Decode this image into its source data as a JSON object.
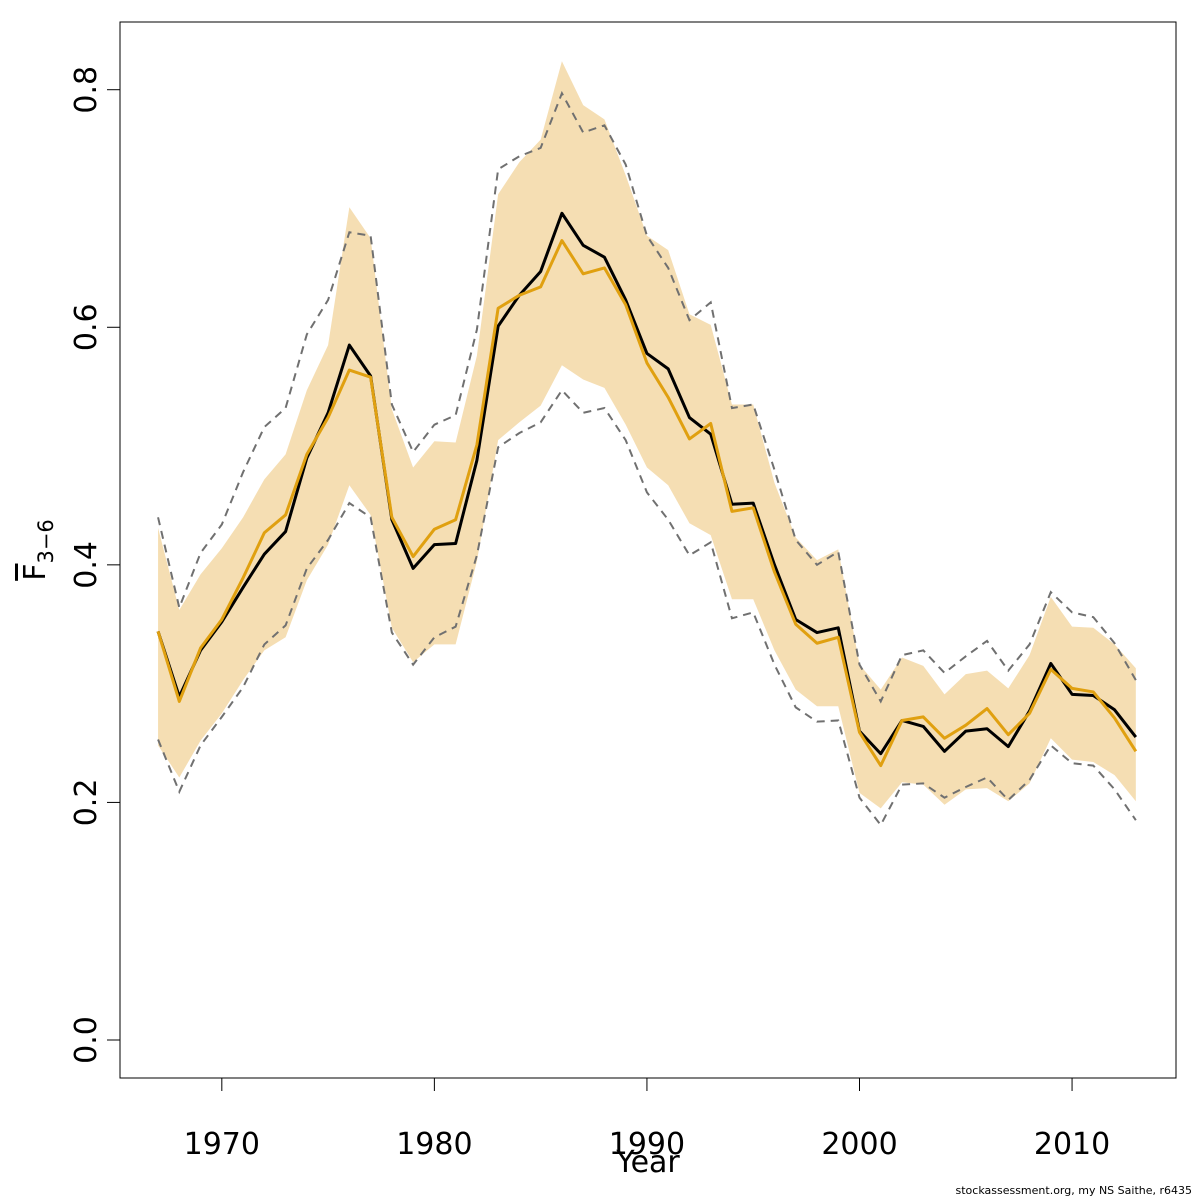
{
  "chart_data": {
    "type": "line",
    "xlabel": "Year",
    "ylabel": {
      "base": "F",
      "subscript": "3−6"
    },
    "footer": "stockassessment.org, my  NS Saithe, r6435",
    "x": [
      1967,
      1968,
      1969,
      1970,
      1971,
      1972,
      1973,
      1974,
      1975,
      1976,
      1977,
      1978,
      1979,
      1980,
      1981,
      1982,
      1983,
      1984,
      1985,
      1986,
      1987,
      1988,
      1989,
      1990,
      1991,
      1992,
      1993,
      1994,
      1995,
      1996,
      1997,
      1998,
      1999,
      2000,
      2001,
      2002,
      2003,
      2004,
      2005,
      2006,
      2007,
      2008,
      2009,
      2010,
      2011,
      2012,
      2013
    ],
    "xlim": [
      1965.21,
      2014.89
    ],
    "ylim": [
      -0.032,
      0.857
    ],
    "xticks": [
      1970,
      1980,
      1990,
      2000,
      2010
    ],
    "yticks": [
      {
        "value": 0,
        "label": "0.0"
      },
      0.2,
      0.4,
      0.6,
      0.8
    ],
    "band": {
      "color": "#f5deb3",
      "lower": [
        0.248,
        0.221,
        0.252,
        0.275,
        0.303,
        0.328,
        0.339,
        0.387,
        0.417,
        0.467,
        0.442,
        0.347,
        0.318,
        0.333,
        0.333,
        0.403,
        0.505,
        0.52,
        0.534,
        0.568,
        0.556,
        0.549,
        0.518,
        0.482,
        0.467,
        0.435,
        0.425,
        0.371,
        0.371,
        0.328,
        0.295,
        0.281,
        0.281,
        0.208,
        0.195,
        0.217,
        0.215,
        0.198,
        0.211,
        0.212,
        0.201,
        0.216,
        0.254,
        0.236,
        0.234,
        0.223,
        0.201
      ],
      "upper": [
        0.431,
        0.362,
        0.392,
        0.414,
        0.44,
        0.472,
        0.493,
        0.547,
        0.585,
        0.701,
        0.675,
        0.531,
        0.482,
        0.504,
        0.503,
        0.576,
        0.712,
        0.739,
        0.758,
        0.824,
        0.787,
        0.775,
        0.728,
        0.677,
        0.665,
        0.611,
        0.602,
        0.535,
        0.535,
        0.469,
        0.423,
        0.404,
        0.413,
        0.316,
        0.295,
        0.322,
        0.315,
        0.291,
        0.308,
        0.311,
        0.296,
        0.324,
        0.373,
        0.348,
        0.347,
        0.333,
        0.313
      ]
    },
    "bounds": {
      "color": "#707070",
      "dashed": true,
      "lower": [
        0.253,
        0.209,
        0.248,
        0.272,
        0.297,
        0.333,
        0.349,
        0.397,
        0.421,
        0.452,
        0.44,
        0.343,
        0.316,
        0.339,
        0.348,
        0.408,
        0.499,
        0.511,
        0.52,
        0.547,
        0.528,
        0.532,
        0.505,
        0.461,
        0.438,
        0.408,
        0.419,
        0.355,
        0.36,
        0.316,
        0.28,
        0.268,
        0.269,
        0.204,
        0.181,
        0.215,
        0.216,
        0.204,
        0.213,
        0.221,
        0.202,
        0.219,
        0.248,
        0.233,
        0.231,
        0.211,
        0.185
      ],
      "upper": [
        0.44,
        0.364,
        0.41,
        0.434,
        0.478,
        0.516,
        0.532,
        0.594,
        0.623,
        0.68,
        0.677,
        0.535,
        0.495,
        0.518,
        0.526,
        0.598,
        0.733,
        0.744,
        0.751,
        0.797,
        0.764,
        0.77,
        0.737,
        0.677,
        0.65,
        0.606,
        0.621,
        0.532,
        0.535,
        0.48,
        0.421,
        0.4,
        0.411,
        0.316,
        0.285,
        0.324,
        0.328,
        0.309,
        0.323,
        0.336,
        0.311,
        0.333,
        0.377,
        0.36,
        0.356,
        0.334,
        0.303
      ]
    },
    "series": [
      {
        "color": "#000000",
        "values": [
          0.344,
          0.289,
          0.328,
          0.352,
          0.381,
          0.409,
          0.428,
          0.49,
          0.528,
          0.585,
          0.559,
          0.438,
          0.397,
          0.417,
          0.418,
          0.488,
          0.601,
          0.627,
          0.647,
          0.696,
          0.669,
          0.659,
          0.623,
          0.578,
          0.565,
          0.524,
          0.51,
          0.451,
          0.452,
          0.4,
          0.354,
          0.343,
          0.347,
          0.26,
          0.241,
          0.269,
          0.264,
          0.243,
          0.26,
          0.262,
          0.247,
          0.277,
          0.317,
          0.291,
          0.29,
          0.278,
          0.255
        ]
      },
      {
        "color": "#e0a010",
        "values": [
          0.344,
          0.285,
          0.33,
          0.354,
          0.389,
          0.427,
          0.442,
          0.493,
          0.524,
          0.564,
          0.558,
          0.44,
          0.407,
          0.43,
          0.438,
          0.501,
          0.616,
          0.627,
          0.634,
          0.673,
          0.645,
          0.65,
          0.619,
          0.57,
          0.541,
          0.506,
          0.519,
          0.445,
          0.448,
          0.394,
          0.35,
          0.334,
          0.339,
          0.259,
          0.231,
          0.269,
          0.272,
          0.254,
          0.265,
          0.279,
          0.257,
          0.275,
          0.312,
          0.296,
          0.293,
          0.271,
          0.243
        ]
      }
    ]
  }
}
